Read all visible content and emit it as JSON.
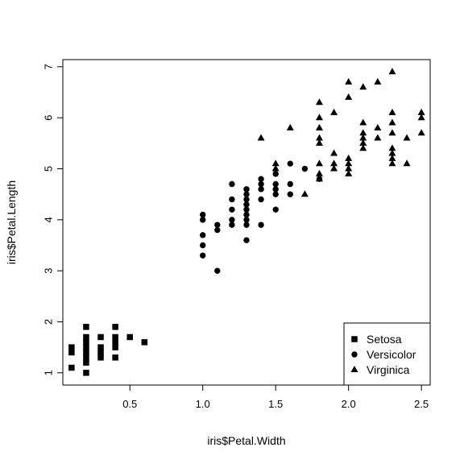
{
  "chart_data": {
    "type": "scatter",
    "title": "",
    "xlabel": "iris$Petal.Width",
    "ylabel": "iris$Petal.Length",
    "xlim": [
      0.04,
      2.56
    ],
    "ylim": [
      0.76,
      7.14
    ],
    "xticks": [
      0.5,
      1.0,
      1.5,
      2.0,
      2.5
    ],
    "xtick_labels": [
      "0.5",
      "1.0",
      "1.5",
      "2.0",
      "2.5"
    ],
    "yticks": [
      1,
      2,
      3,
      4,
      5,
      6,
      7
    ],
    "ytick_labels": [
      "1",
      "2",
      "3",
      "4",
      "5",
      "6",
      "7"
    ],
    "grid": false,
    "legend": {
      "position": "bottom-right"
    },
    "series": [
      {
        "name": "Setosa",
        "marker": "square",
        "color": "#000000",
        "points": [
          [
            0.1,
            1.1
          ],
          [
            0.1,
            1.4
          ],
          [
            0.1,
            1.5
          ],
          [
            0.2,
            1.0
          ],
          [
            0.2,
            1.2
          ],
          [
            0.2,
            1.3
          ],
          [
            0.2,
            1.4
          ],
          [
            0.2,
            1.5
          ],
          [
            0.2,
            1.6
          ],
          [
            0.2,
            1.7
          ],
          [
            0.2,
            1.9
          ],
          [
            0.3,
            1.3
          ],
          [
            0.3,
            1.4
          ],
          [
            0.3,
            1.5
          ],
          [
            0.3,
            1.7
          ],
          [
            0.4,
            1.3
          ],
          [
            0.4,
            1.5
          ],
          [
            0.4,
            1.6
          ],
          [
            0.4,
            1.7
          ],
          [
            0.4,
            1.9
          ],
          [
            0.5,
            1.7
          ],
          [
            0.6,
            1.6
          ]
        ]
      },
      {
        "name": "Versicolor",
        "marker": "circle",
        "color": "#000000",
        "points": [
          [
            1.0,
            3.3
          ],
          [
            1.0,
            3.5
          ],
          [
            1.0,
            3.7
          ],
          [
            1.0,
            4.0
          ],
          [
            1.0,
            4.1
          ],
          [
            1.1,
            3.0
          ],
          [
            1.1,
            3.8
          ],
          [
            1.1,
            3.9
          ],
          [
            1.2,
            3.9
          ],
          [
            1.2,
            4.0
          ],
          [
            1.2,
            4.2
          ],
          [
            1.2,
            4.4
          ],
          [
            1.2,
            4.7
          ],
          [
            1.3,
            3.6
          ],
          [
            1.3,
            3.9
          ],
          [
            1.3,
            4.0
          ],
          [
            1.3,
            4.1
          ],
          [
            1.3,
            4.2
          ],
          [
            1.3,
            4.3
          ],
          [
            1.3,
            4.4
          ],
          [
            1.3,
            4.5
          ],
          [
            1.3,
            4.6
          ],
          [
            1.4,
            3.9
          ],
          [
            1.4,
            4.4
          ],
          [
            1.4,
            4.6
          ],
          [
            1.4,
            4.7
          ],
          [
            1.4,
            4.8
          ],
          [
            1.5,
            4.2
          ],
          [
            1.5,
            4.5
          ],
          [
            1.5,
            4.6
          ],
          [
            1.5,
            4.7
          ],
          [
            1.5,
            4.9
          ],
          [
            1.6,
            4.5
          ],
          [
            1.6,
            4.7
          ],
          [
            1.6,
            5.1
          ],
          [
            1.7,
            5.0
          ],
          [
            1.8,
            4.8
          ]
        ]
      },
      {
        "name": "Virginica",
        "marker": "triangle",
        "color": "#000000",
        "points": [
          [
            1.4,
            5.6
          ],
          [
            1.5,
            5.0
          ],
          [
            1.5,
            5.1
          ],
          [
            1.6,
            5.8
          ],
          [
            1.7,
            4.5
          ],
          [
            1.8,
            4.8
          ],
          [
            1.8,
            4.9
          ],
          [
            1.8,
            5.1
          ],
          [
            1.8,
            5.5
          ],
          [
            1.8,
            5.6
          ],
          [
            1.8,
            5.8
          ],
          [
            1.8,
            6.0
          ],
          [
            1.8,
            6.3
          ],
          [
            1.9,
            5.0
          ],
          [
            1.9,
            5.1
          ],
          [
            1.9,
            5.3
          ],
          [
            1.9,
            6.1
          ],
          [
            2.0,
            4.9
          ],
          [
            2.0,
            5.0
          ],
          [
            2.0,
            5.1
          ],
          [
            2.0,
            5.2
          ],
          [
            2.0,
            6.4
          ],
          [
            2.0,
            6.7
          ],
          [
            2.1,
            5.4
          ],
          [
            2.1,
            5.5
          ],
          [
            2.1,
            5.6
          ],
          [
            2.1,
            5.7
          ],
          [
            2.1,
            5.9
          ],
          [
            2.1,
            6.6
          ],
          [
            2.2,
            5.6
          ],
          [
            2.2,
            5.8
          ],
          [
            2.2,
            6.7
          ],
          [
            2.3,
            5.1
          ],
          [
            2.3,
            5.2
          ],
          [
            2.3,
            5.3
          ],
          [
            2.3,
            5.4
          ],
          [
            2.3,
            5.7
          ],
          [
            2.3,
            5.9
          ],
          [
            2.3,
            6.1
          ],
          [
            2.3,
            6.9
          ],
          [
            2.4,
            5.1
          ],
          [
            2.4,
            5.6
          ],
          [
            2.5,
            5.7
          ],
          [
            2.5,
            6.0
          ],
          [
            2.5,
            6.1
          ]
        ]
      }
    ]
  }
}
